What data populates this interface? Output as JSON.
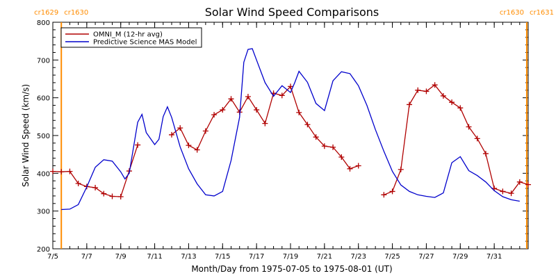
{
  "chart_data": {
    "type": "line",
    "title": "Solar Wind Speed Comparisons",
    "xlabel": "Month/Day from 1975-07-05 to 1975-08-01 (UT)",
    "ylabel": "Solar Wind Speed (km/s)",
    "xlim": [
      "1975-07-05",
      "1975-08-02"
    ],
    "ylim": [
      200,
      800
    ],
    "y_ticks": [
      200,
      300,
      400,
      500,
      600,
      700,
      800
    ],
    "x_ticks": [
      {
        "date": "1975-07-05",
        "label": "7/5"
      },
      {
        "date": "1975-07-07",
        "label": "7/7"
      },
      {
        "date": "1975-07-09",
        "label": "7/9"
      },
      {
        "date": "1975-07-11",
        "label": "7/11"
      },
      {
        "date": "1975-07-13",
        "label": "7/13"
      },
      {
        "date": "1975-07-15",
        "label": "7/15"
      },
      {
        "date": "1975-07-17",
        "label": "7/17"
      },
      {
        "date": "1975-07-19",
        "label": "7/19"
      },
      {
        "date": "1975-07-21",
        "label": "7/21"
      },
      {
        "date": "1975-07-23",
        "label": "7/23"
      },
      {
        "date": "1975-07-25",
        "label": "7/25"
      },
      {
        "date": "1975-07-27",
        "label": "7/27"
      },
      {
        "date": "1975-07-29",
        "label": "7/29"
      },
      {
        "date": "1975-07-31",
        "label": "7/31"
      }
    ],
    "grid": false,
    "legend_position": "top-left",
    "carrington_markers": [
      {
        "date": "1975-07-05 12:00",
        "left": "cr1629",
        "right": "cr1630",
        "position": "top-left"
      },
      {
        "date": "1975-08-01 22:00",
        "left": "cr1630",
        "right": "cr1631",
        "position": "top-right"
      }
    ],
    "colors": {
      "omni": "#b00000",
      "model": "#0000cc",
      "carrington": "#ff8c00",
      "axis": "#000000"
    },
    "series": [
      {
        "name": "OMNI_M (12-hr avg)",
        "marker": "plus",
        "segments": [
          [
            [
              "1975-07-05 00:00",
              405
            ],
            [
              "1975-07-05 12:00",
              404
            ],
            [
              "1975-07-06 00:00",
              405
            ],
            [
              "1975-07-06 12:00",
              373
            ],
            [
              "1975-07-07 00:00",
              365
            ],
            [
              "1975-07-07 12:00",
              362
            ],
            [
              "1975-07-08 00:00",
              346
            ],
            [
              "1975-07-08 12:00",
              339
            ],
            [
              "1975-07-09 00:00",
              338
            ],
            [
              "1975-07-09 12:00",
              406
            ],
            [
              "1975-07-10 00:00",
              475
            ]
          ],
          [
            [
              "1975-07-12 00:00",
              502
            ],
            [
              "1975-07-12 12:00",
              520
            ],
            [
              "1975-07-13 00:00",
              474
            ],
            [
              "1975-07-13 12:00",
              462
            ],
            [
              "1975-07-14 00:00",
              512
            ],
            [
              "1975-07-14 12:00",
              555
            ],
            [
              "1975-07-15 00:00",
              568
            ],
            [
              "1975-07-15 12:00",
              597
            ],
            [
              "1975-07-16 00:00",
              562
            ],
            [
              "1975-07-16 12:00",
              603
            ],
            [
              "1975-07-17 00:00",
              568
            ],
            [
              "1975-07-17 12:00",
              532
            ],
            [
              "1975-07-18 00:00",
              612
            ],
            [
              "1975-07-18 12:00",
              606
            ],
            [
              "1975-07-19 00:00",
              630
            ],
            [
              "1975-07-19 12:00",
              561
            ],
            [
              "1975-07-20 00:00",
              529
            ],
            [
              "1975-07-20 12:00",
              496
            ],
            [
              "1975-07-21 00:00",
              472
            ],
            [
              "1975-07-21 12:00",
              469
            ],
            [
              "1975-07-22 00:00",
              443
            ],
            [
              "1975-07-22 12:00",
              412
            ],
            [
              "1975-07-23 00:00",
              420
            ]
          ],
          [
            [
              "1975-07-24 12:00",
              343
            ],
            [
              "1975-07-25 00:00",
              352
            ],
            [
              "1975-07-25 12:00",
              410
            ],
            [
              "1975-07-26 00:00",
              582
            ],
            [
              "1975-07-26 12:00",
              620
            ],
            [
              "1975-07-27 00:00",
              617
            ],
            [
              "1975-07-27 12:00",
              634
            ],
            [
              "1975-07-28 00:00",
              605
            ],
            [
              "1975-07-28 12:00",
              588
            ],
            [
              "1975-07-29 00:00",
              573
            ],
            [
              "1975-07-29 12:00",
              523
            ],
            [
              "1975-07-30 00:00",
              492
            ],
            [
              "1975-07-30 12:00",
              452
            ],
            [
              "1975-07-31 00:00",
              360
            ],
            [
              "1975-07-31 12:00",
              352
            ],
            [
              "1975-08-01 00:00",
              347
            ],
            [
              "1975-08-01 12:00",
              377
            ],
            [
              "1975-08-02 00:00",
              370
            ]
          ]
        ]
      },
      {
        "name": "Predictive Science MAS Model",
        "marker": "none",
        "segments": [
          [
            [
              "1975-07-05 12:00",
              304
            ],
            [
              "1975-07-06 00:00",
              305
            ],
            [
              "1975-07-06 12:00",
              317
            ],
            [
              "1975-07-07 00:00",
              364
            ],
            [
              "1975-07-07 12:00",
              416
            ],
            [
              "1975-07-08 00:00",
              436
            ],
            [
              "1975-07-08 12:00",
              432
            ],
            [
              "1975-07-09 00:00",
              404
            ],
            [
              "1975-07-09 06:00",
              385
            ],
            [
              "1975-07-09 12:00",
              400
            ],
            [
              "1975-07-10 00:00",
              535
            ],
            [
              "1975-07-10 06:00",
              556
            ],
            [
              "1975-07-10 12:00",
              508
            ],
            [
              "1975-07-11 00:00",
              476
            ],
            [
              "1975-07-11 06:00",
              490
            ],
            [
              "1975-07-11 12:00",
              550
            ],
            [
              "1975-07-11 18:00",
              576
            ],
            [
              "1975-07-12 00:00",
              548
            ],
            [
              "1975-07-12 12:00",
              470
            ],
            [
              "1975-07-13 00:00",
              412
            ],
            [
              "1975-07-13 12:00",
              372
            ],
            [
              "1975-07-14 00:00",
              343
            ],
            [
              "1975-07-14 12:00",
              340
            ],
            [
              "1975-07-15 00:00",
              352
            ],
            [
              "1975-07-15 12:00",
              434
            ],
            [
              "1975-07-16 00:00",
              548
            ],
            [
              "1975-07-16 06:00",
              694
            ],
            [
              "1975-07-16 12:00",
              728
            ],
            [
              "1975-07-16 18:00",
              730
            ],
            [
              "1975-07-17 00:00",
              700
            ],
            [
              "1975-07-17 12:00",
              640
            ],
            [
              "1975-07-18 00:00",
              604
            ],
            [
              "1975-07-18 12:00",
              632
            ],
            [
              "1975-07-19 00:00",
              614
            ],
            [
              "1975-07-19 06:00",
              640
            ],
            [
              "1975-07-19 12:00",
              670
            ],
            [
              "1975-07-20 00:00",
              641
            ],
            [
              "1975-07-20 12:00",
              585
            ],
            [
              "1975-07-21 00:00",
              566
            ],
            [
              "1975-07-21 12:00",
              645
            ],
            [
              "1975-07-22 00:00",
              669
            ],
            [
              "1975-07-22 12:00",
              664
            ],
            [
              "1975-07-23 00:00",
              632
            ],
            [
              "1975-07-23 12:00",
              580
            ],
            [
              "1975-07-24 00:00",
              516
            ],
            [
              "1975-07-24 12:00",
              458
            ],
            [
              "1975-07-25 00:00",
              405
            ],
            [
              "1975-07-25 12:00",
              369
            ],
            [
              "1975-07-26 00:00",
              352
            ],
            [
              "1975-07-26 12:00",
              343
            ],
            [
              "1975-07-27 00:00",
              339
            ],
            [
              "1975-07-27 12:00",
              336
            ],
            [
              "1975-07-28 00:00",
              348
            ],
            [
              "1975-07-28 12:00",
              428
            ],
            [
              "1975-07-29 00:00",
              444
            ],
            [
              "1975-07-29 12:00",
              407
            ],
            [
              "1975-07-30 00:00",
              394
            ],
            [
              "1975-07-30 12:00",
              377
            ],
            [
              "1975-07-31 00:00",
              354
            ],
            [
              "1975-07-31 12:00",
              338
            ],
            [
              "1975-08-01 00:00",
              330
            ],
            [
              "1975-08-01 12:00",
              326
            ]
          ]
        ]
      }
    ]
  }
}
